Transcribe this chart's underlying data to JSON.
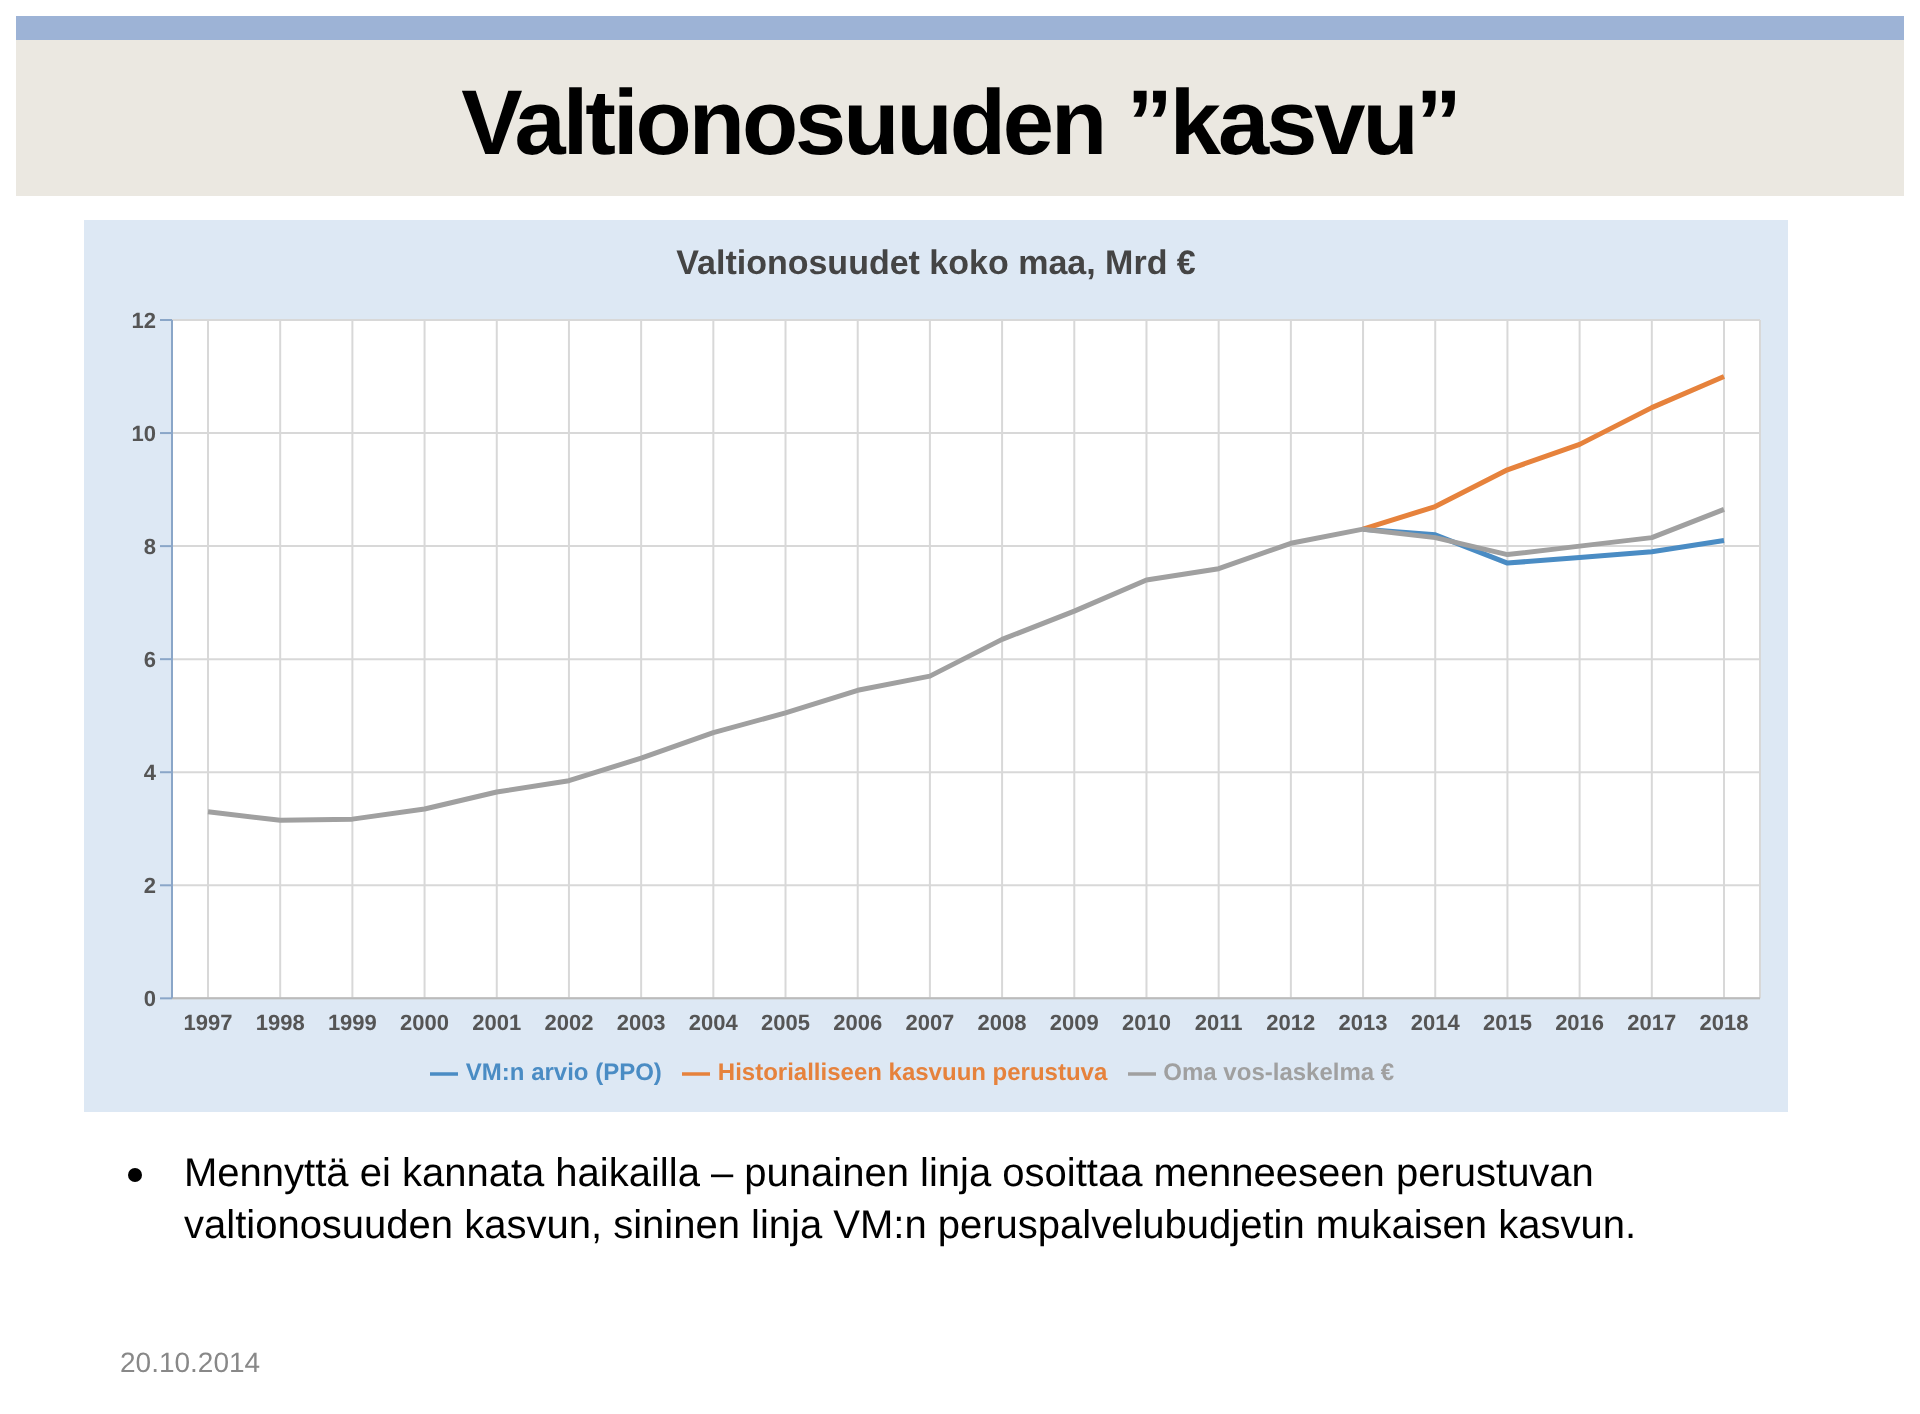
{
  "chart_data": {
    "type": "line",
    "title": "Valtionosuuden ”kasvu”",
    "subtitle": "Valtionosuudet koko maa, Mrd €",
    "categories": [
      "1997",
      "1998",
      "1999",
      "2000",
      "2001",
      "2002",
      "2003",
      "2004",
      "2005",
      "2006",
      "2007",
      "2008",
      "2009",
      "2010",
      "2011",
      "2012",
      "2013",
      "2014",
      "2015",
      "2016",
      "2017",
      "2018"
    ],
    "series": [
      {
        "name": "VM:n arvio (PPO)",
        "color": "#4a8cc4",
        "values": [
          null,
          null,
          null,
          null,
          null,
          null,
          null,
          null,
          null,
          null,
          null,
          null,
          null,
          null,
          null,
          null,
          8.3,
          8.2,
          7.7,
          7.8,
          7.9,
          8.1
        ]
      },
      {
        "name": "Historialliseen kasvuun perustuva",
        "color": "#e6823c",
        "values": [
          null,
          null,
          null,
          null,
          null,
          null,
          null,
          null,
          null,
          null,
          null,
          null,
          null,
          null,
          null,
          null,
          8.3,
          8.7,
          9.35,
          9.8,
          10.45,
          11.0
        ]
      },
      {
        "name": "Oma vos-laskelma €",
        "color": "#a0a0a0",
        "values": [
          3.3,
          3.15,
          3.17,
          3.35,
          3.65,
          3.85,
          4.25,
          4.7,
          5.05,
          5.45,
          5.7,
          6.35,
          6.85,
          7.4,
          7.6,
          8.05,
          8.3,
          8.15,
          7.85,
          8.0,
          8.15,
          8.65
        ]
      }
    ],
    "ylim": [
      0,
      12
    ],
    "yticks": [
      0,
      2,
      4,
      6,
      8,
      10,
      12
    ],
    "grid": true,
    "legend": "bottom",
    "marker": "none",
    "line_style": "solid",
    "annotations": [
      "Mennyttä ei kannata haikailla – punainen linja osoittaa menneeseen perustuvan valtionosuuden kasvun, sininen linja VM:n peruspalvelubudjetin mukaisen kasvun.",
      "20.10.2014"
    ]
  }
}
